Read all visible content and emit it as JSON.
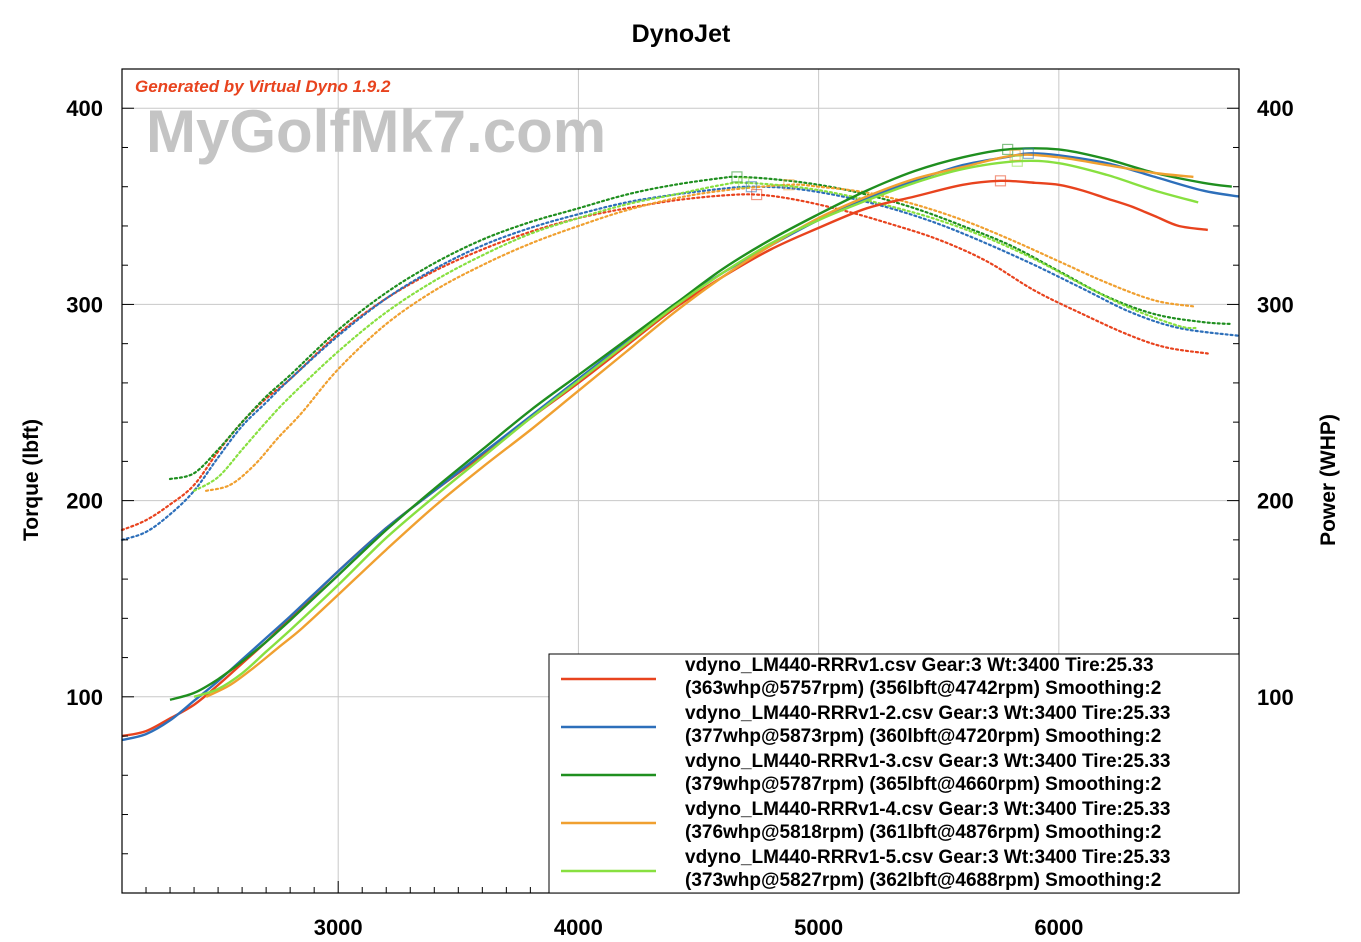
{
  "chart_data": {
    "type": "line",
    "title": "DynoJet",
    "watermark": "MyGolfMk7.com",
    "generated_by": "Generated by Virtual Dyno 1.9.2",
    "xlabel": "",
    "ylabel_left": "Torque (lbft)",
    "ylabel_right": "Power (WHP)",
    "xlim": [
      2100,
      6750
    ],
    "ylim": [
      0,
      420
    ],
    "x_ticks": [
      "3000",
      "4000",
      "5000",
      "6000"
    ],
    "y_ticks_left": [
      "100",
      "200",
      "300",
      "400"
    ],
    "y_ticks_right": [
      "100",
      "200",
      "300",
      "400"
    ],
    "grid": true,
    "legend_position": "bottom-right",
    "colors": {
      "accent_title": "#e8431e",
      "grid": "#c8c8c8"
    },
    "series": [
      {
        "name": "vdyno_LM440-RRRv1.csv Gear:3 Wt:3400 Tire:25.33",
        "legend_line2": "(363whp@5757rpm) (356lbft@4742rpm) Smoothing:2",
        "color": "#e8431e",
        "power": {
          "x": [
            2100,
            2200,
            2300,
            2400,
            2500,
            2600,
            2700,
            2800,
            3000,
            3200,
            3400,
            3600,
            3800,
            4000,
            4200,
            4400,
            4600,
            4800,
            5000,
            5200,
            5400,
            5600,
            5757,
            5900,
            6000,
            6100,
            6200,
            6300,
            6400,
            6500,
            6620
          ],
          "y": [
            80,
            82.5,
            89,
            96,
            106,
            117,
            128,
            140,
            164,
            186,
            205,
            223,
            242,
            260,
            279,
            298,
            314,
            328,
            339,
            349,
            355,
            361,
            363,
            362,
            361,
            358,
            354,
            350,
            345,
            340,
            338
          ]
        },
        "torque": {
          "x": [
            2100,
            2200,
            2300,
            2400,
            2500,
            2600,
            2700,
            2800,
            3000,
            3200,
            3400,
            3600,
            3800,
            4000,
            4200,
            4400,
            4600,
            4742,
            4900,
            5100,
            5300,
            5500,
            5700,
            5900,
            6100,
            6300,
            6450,
            6620
          ],
          "y": [
            185,
            190,
            198,
            208,
            225,
            240,
            252,
            262,
            285,
            303,
            317,
            328,
            337,
            344,
            349,
            353,
            355.5,
            356,
            353.5,
            348,
            341,
            333,
            322,
            307,
            295,
            284,
            278,
            275
          ]
        }
      },
      {
        "name": "vdyno_LM440-RRRv1-2.csv Gear:3 Wt:3400 Tire:25.33",
        "legend_line2": "(377whp@5873rpm) (360lbft@4720rpm) Smoothing:2",
        "color": "#2d6fba",
        "power": {
          "x": [
            2100,
            2200,
            2300,
            2400,
            2500,
            2600,
            2700,
            2800,
            3000,
            3200,
            3400,
            3600,
            3800,
            4000,
            4200,
            4400,
            4600,
            4800,
            5000,
            5200,
            5400,
            5600,
            5800,
            5873,
            6000,
            6200,
            6400,
            6600,
            6750
          ],
          "y": [
            78,
            81,
            88,
            98,
            108,
            119,
            130,
            141,
            164,
            186,
            205,
            224,
            243,
            262,
            281,
            300,
            316,
            330,
            343,
            354,
            363,
            371,
            375.5,
            377,
            376,
            372,
            365,
            358,
            355
          ]
        },
        "torque": {
          "x": [
            2100,
            2200,
            2300,
            2400,
            2500,
            2600,
            2700,
            2800,
            3000,
            3200,
            3400,
            3600,
            3800,
            4000,
            4200,
            4400,
            4600,
            4720,
            4900,
            5100,
            5300,
            5500,
            5700,
            5900,
            6100,
            6300,
            6500,
            6750
          ],
          "y": [
            180,
            184,
            193,
            205,
            222,
            238,
            250,
            262,
            284,
            303,
            318,
            330,
            339,
            346,
            352,
            356,
            359,
            360,
            359,
            355,
            349,
            341,
            331,
            320,
            308,
            296,
            288,
            284
          ]
        }
      },
      {
        "name": "vdyno_LM440-RRRv1-3.csv Gear:3 Wt:3400 Tire:25.33",
        "legend_line2": "(379whp@5787rpm) (365lbft@4660rpm) Smoothing:2",
        "color": "#1f8f1f",
        "power": {
          "x": [
            2300,
            2400,
            2500,
            2600,
            2700,
            2800,
            3000,
            3200,
            3400,
            3600,
            3800,
            4000,
            4200,
            4400,
            4600,
            4800,
            5000,
            5200,
            5400,
            5600,
            5787,
            6000,
            6200,
            6400,
            6600,
            6720
          ],
          "y": [
            98.5,
            102,
            109,
            118,
            128,
            139,
            162,
            185,
            206,
            226,
            246,
            264,
            282,
            300,
            318,
            333,
            346,
            358,
            368,
            375,
            379,
            379,
            374,
            367,
            362,
            360
          ]
        },
        "torque": {
          "x": [
            2300,
            2400,
            2500,
            2600,
            2700,
            2800,
            3000,
            3200,
            3400,
            3600,
            3800,
            4000,
            4200,
            4400,
            4600,
            4660,
            4800,
            5000,
            5200,
            5400,
            5600,
            5800,
            6000,
            6200,
            6400,
            6600,
            6720
          ],
          "y": [
            211,
            214,
            226,
            240,
            253,
            264,
            287,
            306,
            321,
            333,
            342,
            349,
            356,
            361,
            364.5,
            365,
            364,
            361,
            356,
            349,
            340,
            330,
            317,
            304,
            295,
            291,
            290
          ]
        }
      },
      {
        "name": "vdyno_LM440-RRRv1-4.csv Gear:3 Wt:3400 Tire:25.33",
        "legend_line2": "(376whp@5818rpm) (361lbft@4876rpm) Smoothing:2",
        "color": "#f0a030",
        "power": {
          "x": [
            2450,
            2550,
            2650,
            2750,
            2850,
            3000,
            3200,
            3400,
            3600,
            3800,
            4000,
            4200,
            4400,
            4600,
            4800,
            5000,
            5200,
            5400,
            5600,
            5818,
            6000,
            6200,
            6400,
            6560
          ],
          "y": [
            100,
            106,
            115,
            125,
            135,
            152,
            175,
            197,
            217,
            236,
            256,
            276,
            296,
            314,
            330,
            344,
            355,
            364,
            370,
            376,
            375,
            371,
            367,
            365
          ]
        },
        "torque": {
          "x": [
            2450,
            2550,
            2650,
            2750,
            2850,
            3000,
            3200,
            3400,
            3600,
            3800,
            4000,
            4200,
            4400,
            4600,
            4876,
            5000,
            5200,
            5400,
            5600,
            5800,
            6000,
            6200,
            6400,
            6560
          ],
          "y": [
            205,
            208,
            218,
            232,
            245,
            267,
            290,
            307,
            320,
            331,
            340,
            348,
            354,
            358,
            361,
            360,
            357,
            351,
            343,
            333,
            322,
            311,
            302,
            299
          ]
        }
      },
      {
        "name": "vdyno_LM440-RRRv1-5.csv Gear:3 Wt:3400 Tire:25.33",
        "legend_line2": "(373whp@5827rpm) (362lbft@4688rpm) Smoothing:2",
        "color": "#88e040",
        "power": {
          "x": [
            2400,
            2500,
            2600,
            2700,
            2800,
            3000,
            3200,
            3400,
            3600,
            3800,
            4000,
            4200,
            4400,
            4600,
            4800,
            5000,
            5200,
            5400,
            5600,
            5827,
            6000,
            6200,
            6400,
            6580
          ],
          "y": [
            100,
            104,
            112,
            123,
            134,
            157,
            181,
            202,
            222,
            242,
            261,
            280,
            299,
            316,
            331,
            343,
            353,
            362,
            369,
            373,
            372,
            366,
            358,
            352
          ]
        },
        "torque": {
          "x": [
            2400,
            2500,
            2600,
            2700,
            2800,
            3000,
            3200,
            3400,
            3600,
            3800,
            4000,
            4200,
            4400,
            4600,
            4688,
            4900,
            5100,
            5300,
            5500,
            5700,
            5900,
            6100,
            6300,
            6500,
            6580
          ],
          "y": [
            205,
            212,
            226,
            240,
            253,
            276,
            296,
            312,
            325,
            336,
            344,
            351,
            356,
            361,
            362,
            360,
            356,
            350,
            343,
            334,
            323,
            310,
            298,
            289,
            288
          ]
        }
      }
    ],
    "markers": [
      {
        "series": 0,
        "kind": "power",
        "x": 5757,
        "y": 363
      },
      {
        "series": 0,
        "kind": "torque",
        "x": 4742,
        "y": 356
      },
      {
        "series": 1,
        "kind": "power",
        "x": 5873,
        "y": 377
      },
      {
        "series": 1,
        "kind": "torque",
        "x": 4720,
        "y": 360
      },
      {
        "series": 2,
        "kind": "power",
        "x": 5787,
        "y": 379
      },
      {
        "series": 2,
        "kind": "torque",
        "x": 4660,
        "y": 365
      },
      {
        "series": 3,
        "kind": "power",
        "x": 5818,
        "y": 376
      },
      {
        "series": 3,
        "kind": "torque",
        "x": 4876,
        "y": 361
      },
      {
        "series": 4,
        "kind": "power",
        "x": 5827,
        "y": 373
      },
      {
        "series": 4,
        "kind": "torque",
        "x": 4688,
        "y": 362
      }
    ]
  }
}
